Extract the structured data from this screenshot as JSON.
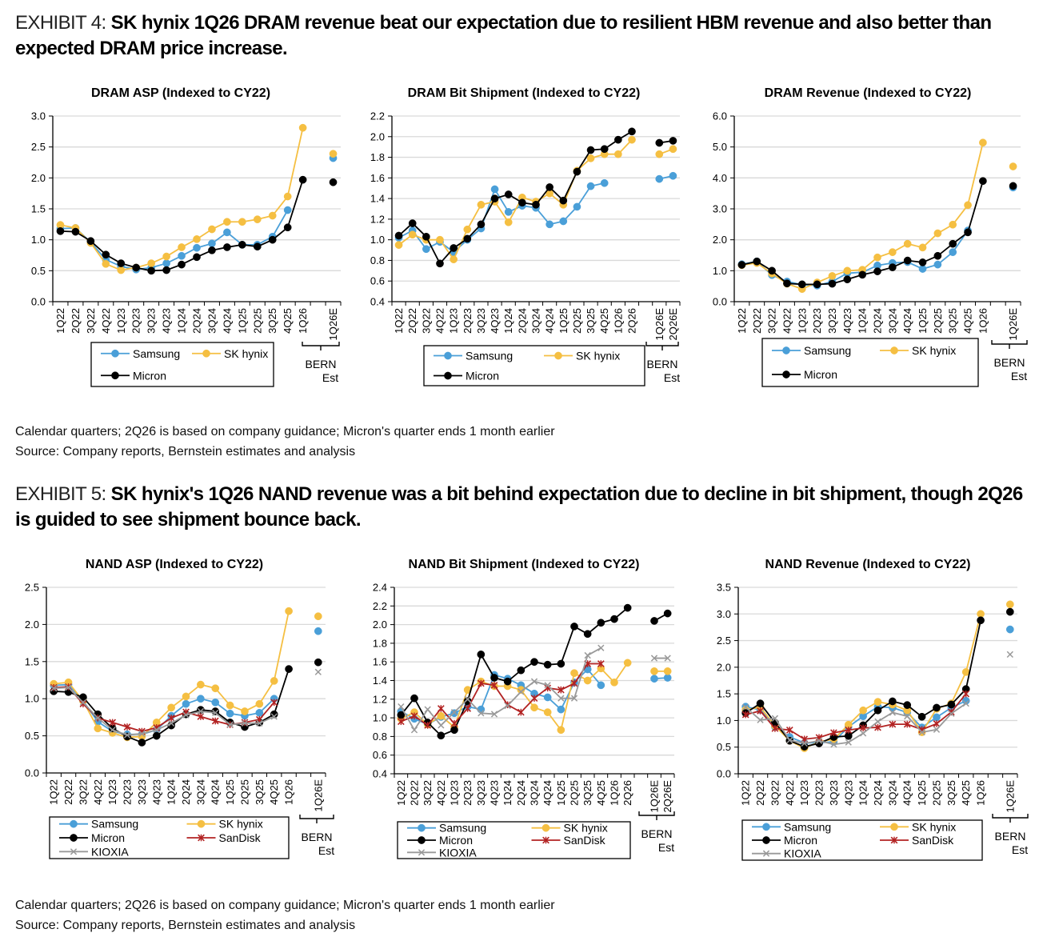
{
  "exhibit4": {
    "label": "EXHIBIT 4: ",
    "headline": "SK hynix 1Q26 DRAM revenue beat our expectation due to resilient HBM revenue and also better than expected DRAM price increase.",
    "note": "Calendar quarters; 2Q26 is based on company guidance; Micron's quarter ends 1 month earlier",
    "source": "Source: Company reports, Bernstein estimates and analysis"
  },
  "exhibit5": {
    "label": "EXHIBIT 5: ",
    "headline": "SK hynix's 1Q26 NAND revenue was a bit behind expectation due to decline in bit shipment, though 2Q26 is guided to see shipment bounce back.",
    "note": "Calendar quarters; 2Q26 is based on company guidance; Micron's quarter ends 1 month earlier",
    "source": "Source: Company reports, Bernstein estimates and analysis"
  },
  "est_group_label": [
    "BERN",
    "Est"
  ],
  "series_styles": {
    "Samsung": {
      "color": "#4a9fd8",
      "marker": "circle"
    },
    "SK hynix": {
      "color": "#f5bf42",
      "marker": "circle"
    },
    "Micron": {
      "color": "#000000",
      "marker": "circle"
    },
    "SanDisk": {
      "color": "#b22222",
      "marker": "star"
    },
    "KIOXIA": {
      "color": "#999999",
      "marker": "x"
    }
  },
  "chart_data": [
    {
      "id": "dram-asp",
      "type": "line",
      "title": "DRAM ASP (Indexed to CY22)",
      "ylim": [
        0,
        3.0
      ],
      "yticks": [
        0,
        0.5,
        1.0,
        1.5,
        2.0,
        2.5,
        3.0
      ],
      "ytick_decimals": 1,
      "grid": true,
      "categories": [
        "1Q22",
        "2Q22",
        "3Q22",
        "4Q22",
        "1Q23",
        "2Q23",
        "3Q23",
        "4Q23",
        "1Q24",
        "2Q24",
        "3Q24",
        "4Q24",
        "1Q25",
        "2Q25",
        "3Q25",
        "4Q25",
        "1Q26"
      ],
      "est_categories": [
        "1Q26E"
      ],
      "legend_placement": "bottom",
      "legend_columns": 2,
      "series": [
        {
          "name": "Samsung",
          "values": [
            1.18,
            1.19,
            0.96,
            0.68,
            0.57,
            0.52,
            0.55,
            0.62,
            0.74,
            0.87,
            0.94,
            1.12,
            0.92,
            0.92,
            1.05,
            1.48,
            null
          ],
          "est": [
            2.32
          ]
        },
        {
          "name": "SK hynix",
          "values": [
            1.24,
            1.19,
            0.95,
            0.61,
            0.51,
            0.55,
            0.62,
            0.73,
            0.88,
            1.01,
            1.17,
            1.29,
            1.29,
            1.33,
            1.39,
            1.7,
            2.81
          ],
          "est": [
            2.39
          ]
        },
        {
          "name": "Micron",
          "values": [
            1.14,
            1.13,
            0.98,
            0.76,
            0.62,
            0.55,
            0.5,
            0.51,
            0.6,
            0.72,
            0.83,
            0.88,
            0.92,
            0.89,
            1.0,
            1.2,
            1.97
          ],
          "est": [
            1.93
          ]
        }
      ]
    },
    {
      "id": "dram-bit",
      "type": "line",
      "title": "DRAM Bit Shipment (Indexed to CY22)",
      "ylim": [
        0.4,
        2.2
      ],
      "yticks": [
        0.4,
        0.6,
        0.8,
        1.0,
        1.2,
        1.4,
        1.6,
        1.8,
        2.0,
        2.2
      ],
      "ytick_decimals": 1,
      "grid": true,
      "categories": [
        "1Q22",
        "2Q22",
        "3Q22",
        "4Q22",
        "1Q23",
        "2Q23",
        "3Q23",
        "4Q23",
        "1Q24",
        "2Q24",
        "3Q24",
        "4Q24",
        "1Q25",
        "2Q25",
        "3Q25",
        "4Q25",
        "1Q26",
        "2Q26"
      ],
      "est_categories": [
        "1Q26E",
        "2Q26E"
      ],
      "legend_placement": "bottom",
      "legend_columns": 2,
      "series": [
        {
          "name": "Samsung",
          "values": [
            1.02,
            1.09,
            0.91,
            0.98,
            0.88,
            1.0,
            1.11,
            1.49,
            1.27,
            1.33,
            1.31,
            1.15,
            1.18,
            1.32,
            1.52,
            1.55,
            null,
            null
          ],
          "est": [
            1.59,
            1.62
          ]
        },
        {
          "name": "SK hynix",
          "values": [
            0.95,
            1.05,
            1.0,
            1.0,
            0.81,
            1.1,
            1.34,
            1.37,
            1.17,
            1.41,
            1.37,
            1.45,
            1.34,
            1.67,
            1.79,
            1.83,
            1.83,
            1.97
          ],
          "est": [
            1.83,
            1.88
          ]
        },
        {
          "name": "Micron",
          "values": [
            1.04,
            1.16,
            1.03,
            0.77,
            0.92,
            1.01,
            1.15,
            1.4,
            1.44,
            1.36,
            1.34,
            1.51,
            1.38,
            1.66,
            1.87,
            1.88,
            1.97,
            2.05
          ],
          "est": [
            1.94,
            1.96
          ]
        }
      ]
    },
    {
      "id": "dram-revenue",
      "type": "line",
      "title": "DRAM Revenue (Indexed to CY22)",
      "ylim": [
        0,
        6.0
      ],
      "yticks": [
        0,
        1.0,
        2.0,
        3.0,
        4.0,
        5.0,
        6.0
      ],
      "ytick_decimals": 1,
      "grid": true,
      "categories": [
        "1Q22",
        "2Q22",
        "3Q22",
        "4Q22",
        "1Q23",
        "2Q23",
        "3Q23",
        "4Q23",
        "1Q24",
        "2Q24",
        "3Q24",
        "4Q24",
        "1Q25",
        "2Q25",
        "3Q25",
        "4Q25",
        "1Q26"
      ],
      "est_categories": [
        "1Q26E"
      ],
      "legend_placement": "bottom",
      "legend_columns": 2,
      "series": [
        {
          "name": "Samsung",
          "values": [
            1.21,
            1.3,
            0.86,
            0.65,
            0.55,
            0.52,
            0.65,
            0.92,
            0.95,
            1.17,
            1.25,
            1.28,
            1.06,
            1.2,
            1.6,
            2.3,
            null
          ],
          "est": [
            3.69
          ]
        },
        {
          "name": "SK hynix",
          "values": [
            1.18,
            1.25,
            0.91,
            0.58,
            0.41,
            0.62,
            0.83,
            1.0,
            1.03,
            1.43,
            1.6,
            1.87,
            1.75,
            2.21,
            2.49,
            3.12,
            5.14
          ],
          "est": [
            4.37
          ]
        },
        {
          "name": "Micron",
          "values": [
            1.19,
            1.3,
            1.0,
            0.59,
            0.56,
            0.56,
            0.58,
            0.72,
            0.87,
            0.98,
            1.11,
            1.33,
            1.27,
            1.48,
            1.87,
            2.24,
            3.9
          ],
          "est": [
            3.74
          ]
        }
      ]
    },
    {
      "id": "nand-asp",
      "type": "line",
      "title": "NAND ASP (Indexed to CY22)",
      "ylim": [
        0,
        2.5
      ],
      "yticks": [
        0,
        0.5,
        1.0,
        1.5,
        2.0,
        2.5
      ],
      "ytick_decimals": 1,
      "grid": true,
      "categories": [
        "1Q22",
        "2Q22",
        "3Q22",
        "4Q22",
        "1Q23",
        "2Q23",
        "3Q23",
        "4Q23",
        "1Q24",
        "2Q24",
        "3Q24",
        "4Q24",
        "1Q25",
        "2Q25",
        "3Q25",
        "4Q25",
        "1Q26"
      ],
      "est_categories": [
        "1Q26E"
      ],
      "legend_placement": "bottom",
      "legend_columns": 2,
      "series": [
        {
          "name": "Samsung",
          "values": [
            1.18,
            1.19,
            0.97,
            0.69,
            0.56,
            0.52,
            0.52,
            0.58,
            0.77,
            0.93,
            1.0,
            0.95,
            0.8,
            0.77,
            0.81,
            1.0,
            null
          ],
          "est": [
            1.91
          ]
        },
        {
          "name": "SK hynix",
          "values": [
            1.2,
            1.22,
            0.97,
            0.6,
            0.54,
            0.48,
            0.49,
            0.68,
            0.88,
            1.03,
            1.19,
            1.14,
            0.91,
            0.83,
            0.93,
            1.24,
            2.18
          ],
          "est": [
            2.11
          ]
        },
        {
          "name": "Micron",
          "values": [
            1.1,
            1.09,
            1.02,
            0.79,
            0.6,
            0.49,
            0.41,
            0.5,
            0.64,
            0.79,
            0.85,
            0.83,
            0.68,
            0.62,
            0.68,
            0.79,
            1.4
          ],
          "est": [
            1.49
          ]
        },
        {
          "name": "SanDisk",
          "values": [
            1.15,
            1.16,
            0.93,
            0.74,
            0.68,
            0.62,
            0.56,
            0.61,
            0.74,
            0.82,
            0.76,
            0.7,
            0.65,
            0.68,
            0.72,
            0.95,
            null
          ],
          "est": [
            null
          ]
        },
        {
          "name": "KIOXIA",
          "values": [
            1.14,
            1.15,
            0.95,
            0.74,
            0.58,
            0.51,
            0.53,
            0.58,
            0.67,
            0.78,
            0.83,
            0.81,
            0.65,
            0.67,
            0.67,
            0.76,
            null
          ],
          "est": [
            1.36
          ]
        }
      ]
    },
    {
      "id": "nand-bit",
      "type": "line",
      "title": "NAND Bit Shipment (Indexed to CY22)",
      "ylim": [
        0.4,
        2.4
      ],
      "yticks": [
        0.4,
        0.6,
        0.8,
        1.0,
        1.2,
        1.4,
        1.6,
        1.8,
        2.0,
        2.2,
        2.4
      ],
      "ytick_decimals": 1,
      "grid": true,
      "categories": [
        "1Q22",
        "2Q22",
        "3Q22",
        "4Q22",
        "1Q23",
        "2Q23",
        "3Q23",
        "4Q23",
        "1Q24",
        "2Q24",
        "3Q24",
        "4Q24",
        "1Q25",
        "2Q25",
        "3Q25",
        "4Q25",
        "1Q26",
        "2Q26"
      ],
      "est_categories": [
        "1Q26E",
        "2Q26E"
      ],
      "legend_placement": "bottom",
      "legend_columns": 2,
      "series": [
        {
          "name": "Samsung",
          "values": [
            1.07,
            0.99,
            0.93,
            1.01,
            1.05,
            1.12,
            1.09,
            1.46,
            1.42,
            1.35,
            1.26,
            1.22,
            1.09,
            1.38,
            1.52,
            1.35,
            null,
            null
          ],
          "est": [
            1.42,
            1.43
          ]
        },
        {
          "name": "SK hynix",
          "values": [
            0.99,
            1.06,
            0.93,
            1.02,
            0.9,
            1.3,
            1.39,
            1.34,
            1.34,
            1.3,
            1.11,
            1.06,
            0.87,
            1.48,
            1.4,
            1.53,
            1.38,
            1.59
          ],
          "est": [
            1.5,
            1.5
          ]
        },
        {
          "name": "Micron",
          "values": [
            1.03,
            1.21,
            0.95,
            0.81,
            0.87,
            1.18,
            1.68,
            1.43,
            1.39,
            1.51,
            1.6,
            1.57,
            1.58,
            1.98,
            1.9,
            2.02,
            2.06,
            2.18
          ],
          "est": [
            2.04,
            2.12
          ]
        },
        {
          "name": "SanDisk",
          "values": [
            0.96,
            1.02,
            0.92,
            1.1,
            0.94,
            1.1,
            1.37,
            1.35,
            1.14,
            1.06,
            1.21,
            1.32,
            1.3,
            1.37,
            1.58,
            1.58,
            null,
            null
          ],
          "est": [
            null,
            null
          ]
        },
        {
          "name": "KIOXIA",
          "values": [
            1.12,
            0.87,
            1.09,
            0.92,
            1.06,
            1.2,
            1.05,
            1.04,
            1.13,
            1.28,
            1.39,
            1.35,
            1.21,
            1.21,
            1.67,
            1.75,
            null,
            null
          ],
          "est": [
            1.64,
            1.64
          ]
        }
      ]
    },
    {
      "id": "nand-revenue",
      "type": "line",
      "title": "NAND Revenue (Indexed to CY22)",
      "ylim": [
        0,
        3.5
      ],
      "yticks": [
        0,
        0.5,
        1.0,
        1.5,
        2.0,
        2.5,
        3.0,
        3.5
      ],
      "ytick_decimals": 1,
      "grid": true,
      "categories": [
        "1Q22",
        "2Q22",
        "3Q22",
        "4Q22",
        "1Q23",
        "2Q23",
        "3Q23",
        "4Q23",
        "1Q24",
        "2Q24",
        "3Q24",
        "4Q24",
        "1Q25",
        "2Q25",
        "3Q25",
        "4Q25",
        "1Q26"
      ],
      "est_categories": [
        "1Q26E"
      ],
      "legend_placement": "bottom",
      "legend_columns": 2,
      "series": [
        {
          "name": "Samsung",
          "values": [
            1.26,
            1.2,
            0.88,
            0.69,
            0.58,
            0.58,
            0.6,
            0.88,
            1.08,
            1.26,
            1.24,
            1.15,
            0.87,
            1.06,
            1.24,
            1.37,
            null
          ],
          "est": [
            2.71
          ]
        },
        {
          "name": "SK hynix",
          "values": [
            1.2,
            1.25,
            0.9,
            0.62,
            0.48,
            0.6,
            0.65,
            0.92,
            1.19,
            1.35,
            1.3,
            1.19,
            0.78,
            1.22,
            1.32,
            1.91,
            3.0
          ],
          "est": [
            3.18
          ]
        },
        {
          "name": "Micron",
          "values": [
            1.14,
            1.32,
            0.96,
            0.62,
            0.51,
            0.57,
            0.69,
            0.71,
            0.91,
            1.19,
            1.36,
            1.29,
            1.07,
            1.24,
            1.3,
            1.59,
            2.88
          ],
          "est": [
            3.04
          ]
        },
        {
          "name": "SanDisk",
          "values": [
            1.11,
            1.18,
            0.85,
            0.82,
            0.65,
            0.68,
            0.77,
            0.82,
            0.86,
            0.87,
            0.93,
            0.93,
            0.83,
            0.94,
            1.16,
            1.5,
            null
          ],
          "est": [
            null
          ]
        },
        {
          "name": "KIOXIA",
          "values": [
            1.25,
            1.01,
            1.04,
            0.63,
            0.57,
            0.62,
            0.55,
            0.59,
            0.76,
            0.98,
            1.15,
            1.08,
            0.78,
            0.83,
            1.13,
            1.32,
            null
          ],
          "est": [
            2.24
          ]
        }
      ]
    }
  ]
}
